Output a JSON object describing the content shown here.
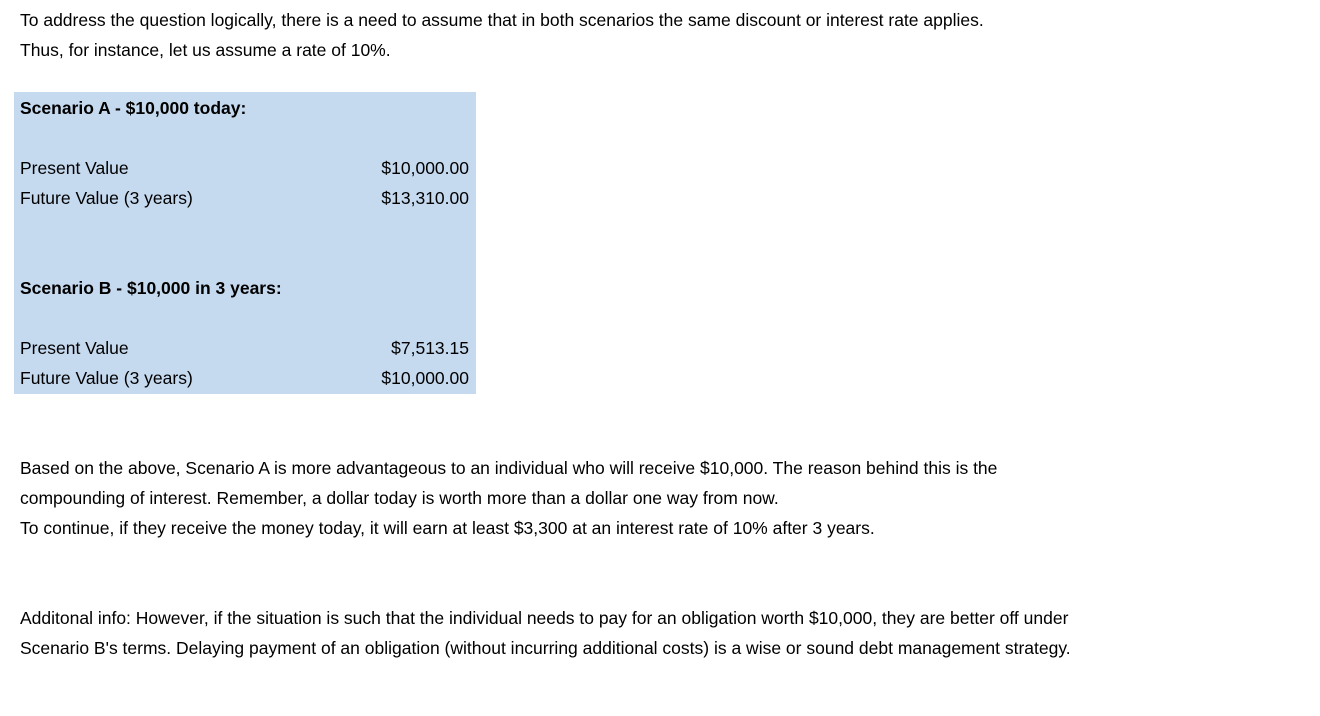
{
  "intro": [
    "To address the question logically, there is a need to assume that in both scenarios the same discount or interest rate applies.",
    "Thus, for instance, let us assume a rate of 10%."
  ],
  "table": {
    "background": "#c5d9ef",
    "scenario_a": {
      "heading": "Scenario A - $10,000 today:",
      "rows": [
        {
          "label": "Present Value",
          "value": "$10,000.00"
        },
        {
          "label": "Future Value (3 years)",
          "value": "$13,310.00"
        }
      ]
    },
    "scenario_b": {
      "heading": "Scenario B - $10,000 in 3 years:",
      "rows": [
        {
          "label": "Present Value",
          "value": "$7,513.15"
        },
        {
          "label": "Future Value (3 years)",
          "value": "$10,000.00"
        }
      ]
    }
  },
  "conclusion": [
    "Based on the above, Scenario A is more advantageous to an individual who will receive $10,000. The reason behind this is the",
    "compounding of interest. Remember, a dollar today is worth more than a dollar one way from now.",
    "To continue, if they receive the money today, it will earn at least $3,300 at an interest rate of 10% after 3 years."
  ],
  "additional": [
    "Additonal info: However, if the situation is such that the individual needs to pay for an obligation worth $10,000, they are better off under",
    "Scenario B's terms. Delaying payment of an obligation (without incurring additional costs) is a wise or sound debt management strategy."
  ]
}
